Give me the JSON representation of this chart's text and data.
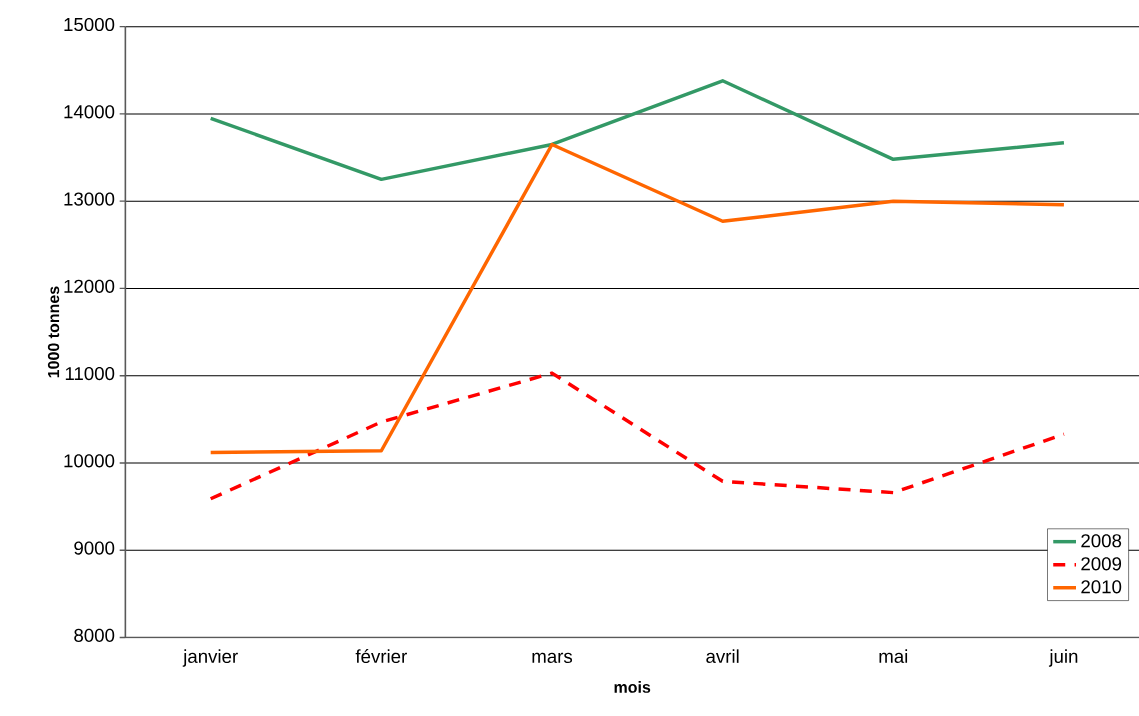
{
  "chart_data": {
    "type": "line",
    "xlabel": "mois",
    "ylabel": "1000 tonnes",
    "categories": [
      "janvier",
      "février",
      "mars",
      "avril",
      "mai",
      "juin"
    ],
    "series": [
      {
        "name": "2008",
        "color": "#339966",
        "line_style": "solid",
        "values": [
          13950,
          13250,
          13650,
          14380,
          13480,
          13670
        ]
      },
      {
        "name": "2009",
        "color": "#ff0000",
        "line_style": "dashed",
        "values": [
          9590,
          10470,
          11030,
          9790,
          9660,
          10330
        ]
      },
      {
        "name": "2010",
        "color": "#ff6600",
        "line_style": "solid",
        "values": [
          10120,
          10140,
          13650,
          12770,
          13000,
          12960
        ]
      }
    ],
    "ylim": [
      8000,
      15000
    ],
    "yticks": [
      8000,
      9000,
      10000,
      11000,
      12000,
      13000,
      14000,
      15000
    ],
    "grid": "y",
    "legend": "bottom right",
    "marker": "none"
  }
}
